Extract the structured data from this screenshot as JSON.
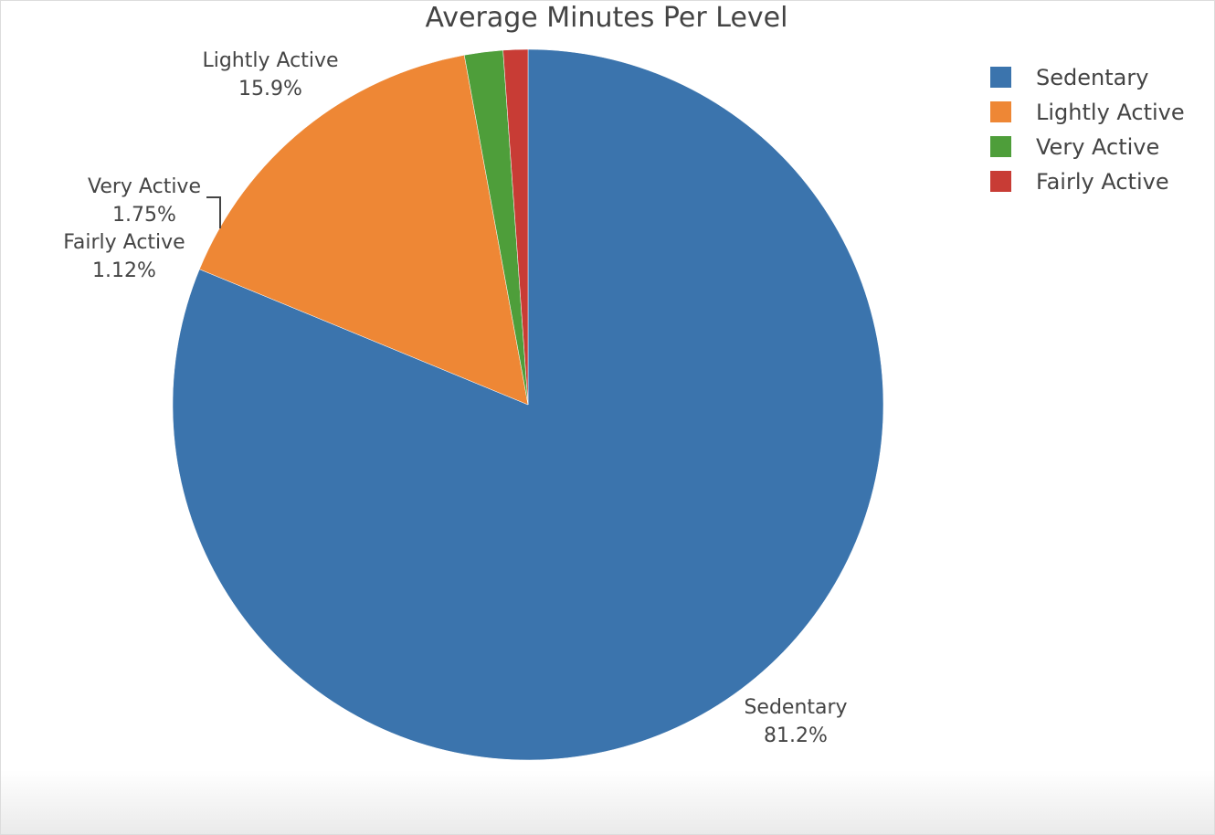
{
  "chart_data": {
    "type": "pie",
    "title": "Average Minutes Per Level",
    "slices": [
      {
        "label": "Sedentary",
        "percent": 81.2,
        "percent_label": "81.2%",
        "color": "#3b74ad"
      },
      {
        "label": "Lightly Active",
        "percent": 15.9,
        "percent_label": "15.9%",
        "color": "#ee8735"
      },
      {
        "label": "Very Active",
        "percent": 1.75,
        "percent_label": "1.75%",
        "color": "#4e9e3a"
      },
      {
        "label": "Fairly Active",
        "percent": 1.12,
        "percent_label": "1.12%",
        "color": "#c83c35"
      }
    ],
    "legend_position": "top-right"
  }
}
